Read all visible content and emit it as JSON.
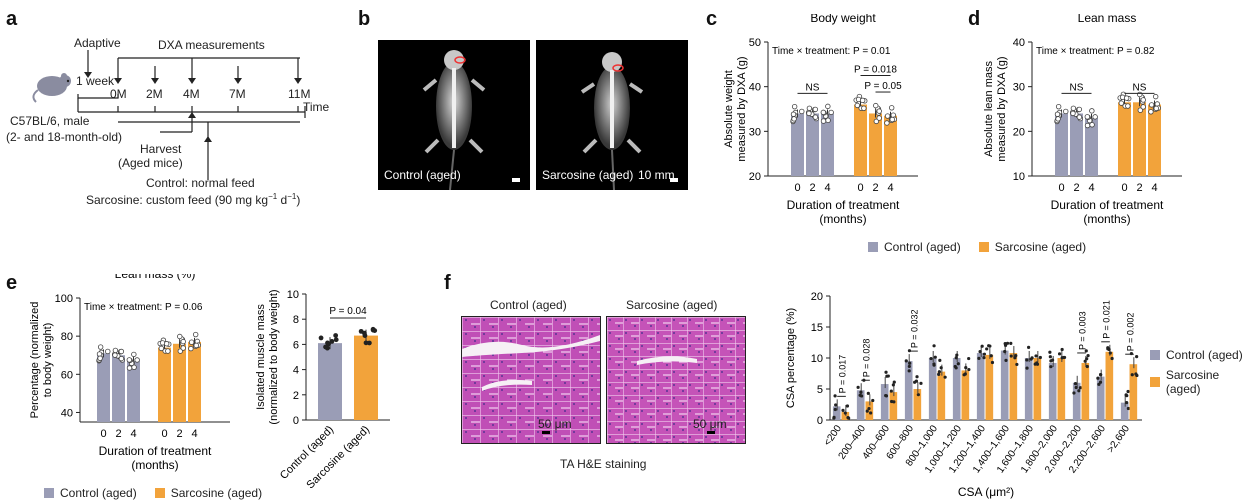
{
  "panels": [
    "a",
    "b",
    "c",
    "d",
    "e",
    "f"
  ],
  "colors": {
    "control": "#9a9db6",
    "sarcosine": "#f2a33b",
    "axis": "#222222"
  },
  "timeline": {
    "adaptive": "Adaptive",
    "dxa": "DXA measurements",
    "week": "1 week",
    "time_points": [
      "0M",
      "2M",
      "4M",
      "7M",
      "11M"
    ],
    "time_label": "Time",
    "mouse_line1": "C57BL/6, male",
    "mouse_line2": "(2- and 18-month-old)",
    "harvest_line1": "Harvest",
    "harvest_line2": "(Aged mice)",
    "control_feed": "Control: normal feed",
    "sarcosine_feed_prefix": "Sarcosine: custom feed (90 mg kg",
    "sup1": "−1",
    "sep": " d",
    "sup2": "−1",
    "sarcosine_feed_suffix": ")",
    "icon": "mouse-icon"
  },
  "xray": {
    "control_label": "Control (aged)",
    "sarcosine_label": "Sarcosine (aged)",
    "scale": "10 mm"
  },
  "legend": {
    "control": "Control (aged)",
    "sarcosine": "Sarcosine (aged)"
  },
  "he": {
    "control_label": "Control (aged)",
    "sarcosine_label": "Sarcosine (aged)",
    "scale": "50 μm",
    "caption": "TA H&E staining"
  },
  "chart_data": [
    {
      "id": "c",
      "type": "bar",
      "title": "Body weight",
      "annotation": "Time × treatment: P = 0.01",
      "ylabel": [
        "Absolute weight",
        "measured by DXA (g)"
      ],
      "xlabel": [
        "Duration of treatment",
        "(months)"
      ],
      "ylim": [
        20,
        50
      ],
      "yticks": [
        20,
        30,
        40,
        50
      ],
      "categories": [
        "0",
        "2",
        "4"
      ],
      "series": [
        {
          "name": "Control (aged)",
          "values": [
            34,
            34,
            34
          ]
        },
        {
          "name": "Sarcosine (aged)",
          "values": [
            36,
            34,
            33.5
          ]
        }
      ],
      "brackets": [
        {
          "series": 0,
          "from": 0,
          "to": 2,
          "label": "NS",
          "y": 38.5
        },
        {
          "series": 1,
          "from": 0,
          "to": 2,
          "label": "P = 0.018",
          "y": 42.5
        },
        {
          "series": 1,
          "from": 1,
          "to": 2,
          "label": "P = 0.05",
          "y": 38.8
        }
      ]
    },
    {
      "id": "d",
      "type": "bar",
      "title": "Lean mass",
      "annotation": "Time × treatment: P = 0.82",
      "ylabel": [
        "Absolute lean mass",
        "measured by DXA (g)"
      ],
      "xlabel": [
        "Duration of treatment",
        "(months)"
      ],
      "ylim": [
        10,
        40
      ],
      "yticks": [
        10,
        20,
        30,
        40
      ],
      "categories": [
        "0",
        "2",
        "4"
      ],
      "series": [
        {
          "name": "Control (aged)",
          "values": [
            24,
            24,
            23
          ]
        },
        {
          "name": "Sarcosine (aged)",
          "values": [
            26.5,
            26.5,
            26
          ]
        }
      ],
      "brackets": [
        {
          "series": 0,
          "from": 0,
          "to": 2,
          "label": "NS",
          "y": 28.5
        },
        {
          "series": 1,
          "from": 0,
          "to": 2,
          "label": "NS",
          "y": 28.5
        }
      ]
    },
    {
      "id": "e1",
      "type": "bar",
      "title": "Lean mass (%)",
      "annotation": "Time × treatment: P = 0.06",
      "ylabel": [
        "Percentage (normalized",
        "to body weight)"
      ],
      "xlabel": [
        "Duration of treatment",
        "(months)"
      ],
      "ylim": [
        35,
        100
      ],
      "yticks": [
        40,
        60,
        80,
        100
      ],
      "categories": [
        "0",
        "2",
        "4"
      ],
      "series": [
        {
          "name": "Control (aged)",
          "values": [
            71,
            70,
            67
          ]
        },
        {
          "name": "Sarcosine (aged)",
          "values": [
            74,
            76,
            77
          ]
        }
      ]
    },
    {
      "id": "e2",
      "type": "bar",
      "ylabel": [
        "Isolated muscle mass",
        "(normalized to body weight)"
      ],
      "ylim": [
        0,
        10
      ],
      "yticks": [
        0,
        2,
        4,
        6,
        8,
        10
      ],
      "categories": [
        "Control (aged)",
        "Sarcosine (aged)"
      ],
      "values": [
        6.1,
        6.7
      ],
      "p_value": "P = 0.04"
    },
    {
      "id": "f",
      "type": "bar",
      "ylabel": "CSA percentage (%)",
      "xlabel": "CSA (μm²)",
      "ylim": [
        0,
        20
      ],
      "yticks": [
        0,
        5,
        10,
        15,
        20
      ],
      "categories": [
        "<200",
        "200–400",
        "400–600",
        "600–800",
        "800–1,000",
        "1,000–1,200",
        "1,200–1,400",
        "1,400–1,600",
        "1,600–1,800",
        "1,800–2,000",
        "2,000–2,200",
        "2,200–2,600",
        ">2,600"
      ],
      "series": [
        {
          "name": "Control (aged)",
          "values": [
            2.2,
            4.8,
            5.8,
            9.5,
            10,
            10,
            10.8,
            11.2,
            10,
            9.2,
            6,
            7,
            2.8
          ]
        },
        {
          "name": "Sarcosine (aged)",
          "values": [
            1.3,
            3,
            4.5,
            5,
            7.8,
            8,
            10.5,
            10.8,
            10,
            10,
            9.2,
            11,
            9
          ]
        }
      ],
      "pvalues": [
        {
          "index": 0,
          "label": "P = 0.017"
        },
        {
          "index": 1,
          "label": "P = 0.028"
        },
        {
          "index": 3,
          "label": "P = 0.032"
        },
        {
          "index": 10,
          "label": "P = 0.003"
        },
        {
          "index": 11,
          "label": "P = 0.021"
        },
        {
          "index": 12,
          "label": "P = 0.002"
        }
      ]
    }
  ]
}
